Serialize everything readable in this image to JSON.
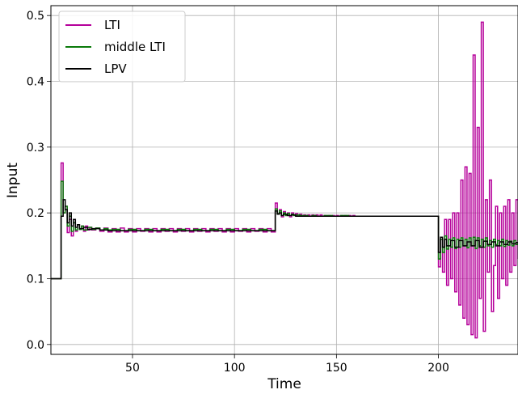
{
  "chart_data": {
    "type": "line",
    "title": "",
    "xlabel": "Time",
    "ylabel": "Input",
    "xlim": [
      10,
      239
    ],
    "ylim": [
      -0.015,
      0.515
    ],
    "x_ticks": [
      50,
      100,
      150,
      200
    ],
    "y_ticks": [
      0.0,
      0.1,
      0.2,
      0.3,
      0.4,
      0.5
    ],
    "x_tick_labels": [
      "50",
      "100",
      "150",
      "200"
    ],
    "y_tick_labels": [
      "0.0",
      "0.1",
      "0.2",
      "0.3",
      "0.4",
      "0.5"
    ],
    "grid": true,
    "legend_position": "top-left",
    "step": true,
    "series": [
      {
        "name": "LTI",
        "color": "#b5009a",
        "x": [
          10,
          15,
          16,
          17,
          18,
          19,
          20,
          21,
          22,
          23,
          24,
          25,
          26,
          27,
          28,
          29,
          30,
          32,
          34,
          36,
          38,
          40,
          42,
          44,
          46,
          48,
          50,
          52,
          54,
          56,
          58,
          60,
          62,
          64,
          66,
          68,
          70,
          72,
          74,
          76,
          78,
          80,
          82,
          84,
          86,
          88,
          90,
          92,
          94,
          96,
          98,
          100,
          102,
          104,
          106,
          108,
          110,
          112,
          114,
          116,
          118,
          120,
          121,
          122,
          123,
          124,
          125,
          126,
          127,
          128,
          129,
          130,
          131,
          132,
          133,
          134,
          135,
          136,
          137,
          138,
          139,
          140,
          141,
          142,
          143,
          144,
          145,
          146,
          147,
          148,
          149,
          150,
          151,
          152,
          153,
          154,
          155,
          156,
          157,
          158,
          159,
          160,
          200,
          201,
          202,
          203,
          204,
          205,
          206,
          207,
          208,
          209,
          210,
          211,
          212,
          213,
          214,
          215,
          216,
          217,
          218,
          219,
          220,
          221,
          222,
          223,
          224,
          225,
          226,
          227,
          228,
          229,
          230,
          231,
          232,
          233,
          234,
          235,
          236,
          237,
          238,
          239
        ],
        "y": [
          0.1,
          0.276,
          0.2,
          0.21,
          0.17,
          0.19,
          0.165,
          0.185,
          0.172,
          0.182,
          0.175,
          0.18,
          0.172,
          0.18,
          0.174,
          0.178,
          0.174,
          0.177,
          0.172,
          0.177,
          0.171,
          0.176,
          0.171,
          0.177,
          0.171,
          0.176,
          0.171,
          0.176,
          0.172,
          0.176,
          0.171,
          0.176,
          0.171,
          0.176,
          0.172,
          0.176,
          0.171,
          0.176,
          0.172,
          0.176,
          0.171,
          0.176,
          0.172,
          0.176,
          0.171,
          0.176,
          0.172,
          0.176,
          0.171,
          0.176,
          0.171,
          0.176,
          0.172,
          0.176,
          0.171,
          0.176,
          0.172,
          0.176,
          0.171,
          0.176,
          0.171,
          0.215,
          0.199,
          0.205,
          0.194,
          0.202,
          0.196,
          0.2,
          0.194,
          0.2,
          0.196,
          0.199,
          0.195,
          0.198,
          0.195,
          0.197,
          0.195,
          0.197,
          0.195,
          0.197,
          0.195,
          0.197,
          0.195,
          0.197,
          0.195,
          0.196,
          0.195,
          0.196,
          0.195,
          0.196,
          0.195,
          0.196,
          0.195,
          0.196,
          0.195,
          0.196,
          0.195,
          0.196,
          0.195,
          0.196,
          0.195,
          0.195,
          0.118,
          0.16,
          0.11,
          0.19,
          0.09,
          0.19,
          0.1,
          0.2,
          0.08,
          0.2,
          0.06,
          0.25,
          0.04,
          0.27,
          0.03,
          0.26,
          0.015,
          0.44,
          0.01,
          0.33,
          0.07,
          0.49,
          0.02,
          0.22,
          0.11,
          0.25,
          0.05,
          0.12,
          0.21,
          0.07,
          0.2,
          0.1,
          0.21,
          0.09,
          0.22,
          0.11,
          0.2,
          0.12,
          0.22,
          0.13
        ]
      },
      {
        "name": "middle LTI",
        "color": "#0a7a0a",
        "x": [
          10,
          15,
          16,
          17,
          18,
          19,
          20,
          21,
          22,
          23,
          24,
          25,
          26,
          28,
          30,
          32,
          34,
          36,
          38,
          40,
          44,
          48,
          52,
          56,
          60,
          64,
          68,
          72,
          76,
          80,
          84,
          88,
          92,
          96,
          100,
          104,
          108,
          112,
          116,
          120,
          121,
          122,
          123,
          124,
          125,
          126,
          127,
          128,
          129,
          130,
          132,
          134,
          136,
          138,
          140,
          144,
          148,
          152,
          156,
          160,
          200,
          201,
          202,
          203,
          204,
          205,
          206,
          207,
          208,
          209,
          210,
          211,
          212,
          213,
          214,
          215,
          216,
          217,
          218,
          219,
          220,
          221,
          222,
          223,
          224,
          225,
          226,
          227,
          228,
          229,
          230,
          231,
          232,
          233,
          234,
          235,
          236,
          237,
          238,
          239
        ],
        "y": [
          0.1,
          0.248,
          0.2,
          0.21,
          0.18,
          0.195,
          0.172,
          0.185,
          0.174,
          0.182,
          0.175,
          0.18,
          0.174,
          0.178,
          0.175,
          0.177,
          0.174,
          0.176,
          0.174,
          0.175,
          0.173,
          0.175,
          0.173,
          0.175,
          0.173,
          0.175,
          0.173,
          0.175,
          0.173,
          0.175,
          0.173,
          0.175,
          0.173,
          0.175,
          0.173,
          0.175,
          0.173,
          0.175,
          0.173,
          0.206,
          0.199,
          0.203,
          0.196,
          0.2,
          0.196,
          0.199,
          0.196,
          0.198,
          0.196,
          0.197,
          0.196,
          0.196,
          0.195,
          0.196,
          0.195,
          0.196,
          0.195,
          0.196,
          0.195,
          0.195,
          0.13,
          0.16,
          0.14,
          0.165,
          0.145,
          0.16,
          0.148,
          0.162,
          0.146,
          0.16,
          0.148,
          0.162,
          0.15,
          0.16,
          0.147,
          0.162,
          0.15,
          0.163,
          0.146,
          0.162,
          0.15,
          0.16,
          0.148,
          0.162,
          0.15,
          0.158,
          0.148,
          0.16,
          0.152,
          0.158,
          0.15,
          0.16,
          0.149,
          0.158,
          0.151,
          0.157,
          0.15,
          0.158,
          0.152,
          0.156
        ]
      },
      {
        "name": "LPV",
        "color": "#000000",
        "x": [
          10,
          15,
          16,
          17,
          18,
          19,
          20,
          21,
          22,
          23,
          24,
          26,
          28,
          30,
          34,
          38,
          120,
          121,
          122,
          123,
          124,
          126,
          128,
          130,
          200,
          201,
          202,
          203,
          204,
          206,
          208,
          210,
          212,
          214,
          216,
          218,
          220,
          222,
          224,
          226,
          228,
          230,
          232,
          234,
          236,
          238,
          239
        ],
        "y": [
          0.1,
          0.195,
          0.22,
          0.205,
          0.185,
          0.2,
          0.18,
          0.19,
          0.178,
          0.182,
          0.176,
          0.178,
          0.175,
          0.176,
          0.174,
          0.173,
          0.203,
          0.198,
          0.2,
          0.196,
          0.198,
          0.196,
          0.197,
          0.195,
          0.14,
          0.163,
          0.148,
          0.16,
          0.15,
          0.158,
          0.148,
          0.158,
          0.15,
          0.156,
          0.15,
          0.158,
          0.148,
          0.157,
          0.152,
          0.156,
          0.15,
          0.156,
          0.152,
          0.156,
          0.153,
          0.155,
          0.155
        ]
      }
    ]
  }
}
